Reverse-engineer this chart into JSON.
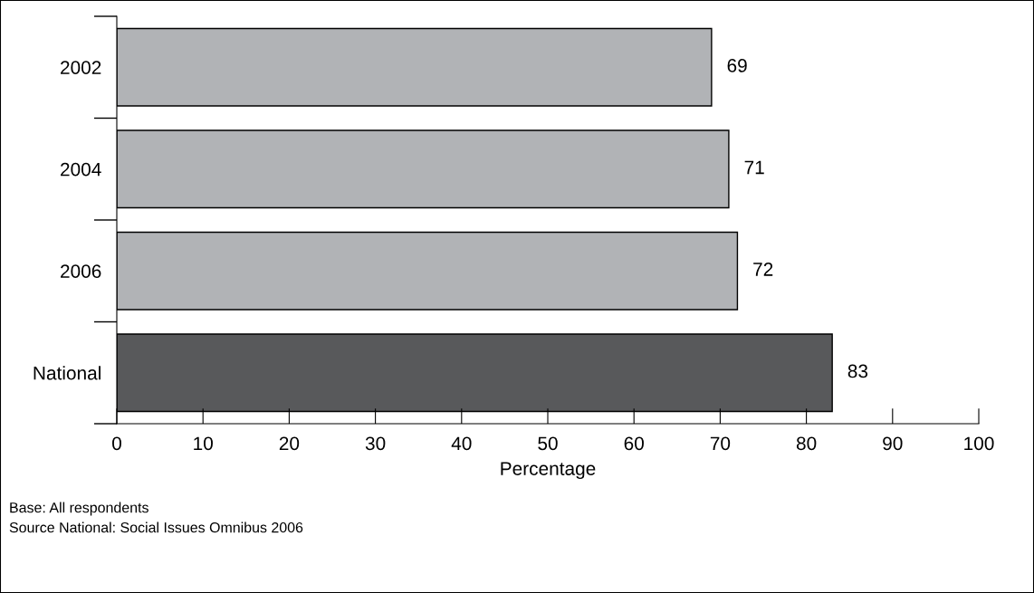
{
  "chart_data": {
    "type": "bar",
    "orientation": "horizontal",
    "categories": [
      "2002",
      "2004",
      "2006",
      "National"
    ],
    "values": [
      69,
      71,
      72,
      83
    ],
    "colors": [
      "#b1b3b6",
      "#b1b3b6",
      "#b1b3b6",
      "#58595b"
    ],
    "xlabel": "Percentage",
    "xlim": [
      0,
      100
    ],
    "xticks": [
      0,
      10,
      20,
      30,
      40,
      50,
      60,
      70,
      80,
      90,
      100
    ],
    "data_labels": true,
    "grid": false,
    "legend": false,
    "annotations": [
      "Base: All respondents",
      "Source National: Social Issues Omnibus 2006"
    ]
  }
}
